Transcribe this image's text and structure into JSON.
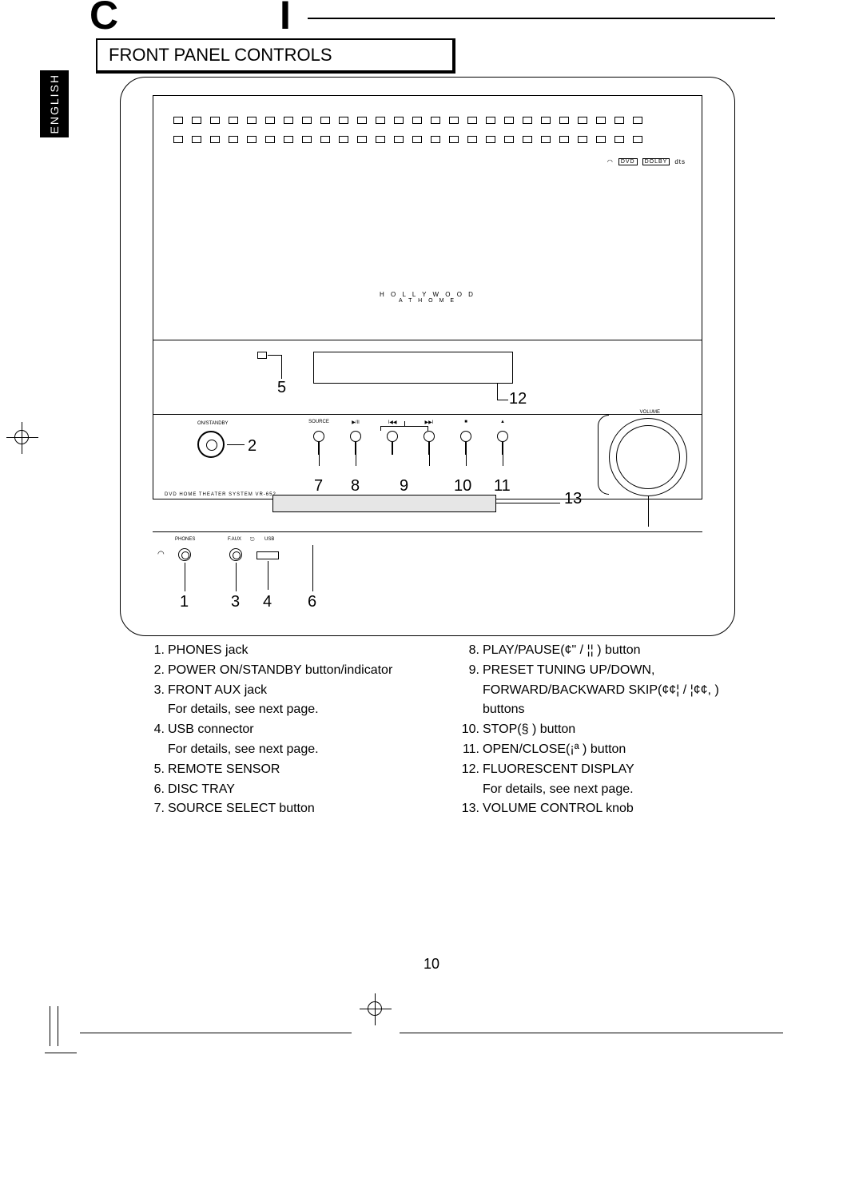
{
  "header": {
    "top_letter_left": "C",
    "top_letter_right": "I",
    "section_title": "FRONT PANEL CONTROLS",
    "language_tab": "ENGLISH"
  },
  "device": {
    "brand_line1": "H O L L Y W O O D",
    "brand_line2": "A T  H O M E",
    "model_text": "DVD HOME THEATER SYSTEM   VR-652",
    "onstandby_label": "ON/STANDBY",
    "volume_label": "VOLUME",
    "btn_source": "SOURCE",
    "btn_play": "▶/II",
    "btn_prev": "I◀◀",
    "btn_next": "▶▶I",
    "btn_stop": "■",
    "btn_open": "▲",
    "port_phones": "PHONES",
    "port_faux": "F.AUX",
    "port_usb": "USB",
    "logos": {
      "dvd": "DVD",
      "dolby": "DOLBY",
      "dts": "dts"
    }
  },
  "callouts": {
    "c1": "1",
    "c2": "2",
    "c3": "3",
    "c4": "4",
    "c5": "5",
    "c6": "6",
    "c7": "7",
    "c8": "8",
    "c9": "9",
    "c10": "10",
    "c11": "11",
    "c12": "12",
    "c13": "13"
  },
  "legend": {
    "left": [
      {
        "n": "1.",
        "t": "PHONES jack"
      },
      {
        "n": "2.",
        "t": "POWER  ON/STANDBY button/indicator"
      },
      {
        "n": "3.",
        "t": "FRONT AUX jack"
      },
      {
        "n": "",
        "t": "For details, see next page."
      },
      {
        "n": "4.",
        "t": "USB connector"
      },
      {
        "n": "",
        "t": "For details, see next page."
      },
      {
        "n": "5.",
        "t": "REMOTE SENSOR"
      },
      {
        "n": "6.",
        "t": "DISC TRAY"
      },
      {
        "n": "7.",
        "t": "SOURCE SELECT button"
      }
    ],
    "right": [
      {
        "n": "8.",
        "t": "PLAY/PAUSE(¢\" / ¦¦ ) button"
      },
      {
        "n": "9.",
        "t": "PRESET TUNING UP/DOWN,"
      },
      {
        "n": "",
        "t": "FORWARD/BACKWARD SKIP(¢¢¦ / ¦¢¢, ) buttons"
      },
      {
        "n": "10.",
        "t": "STOP(§ ) button"
      },
      {
        "n": "11.",
        "t": "OPEN/CLOSE(¡ª ) button"
      },
      {
        "n": "12.",
        "t": "FLUORESCENT DISPLAY"
      },
      {
        "n": "",
        "t": "For details, see next page."
      },
      {
        "n": "13.",
        "t": "VOLUME CONTROL knob"
      }
    ]
  },
  "page_number": "10"
}
